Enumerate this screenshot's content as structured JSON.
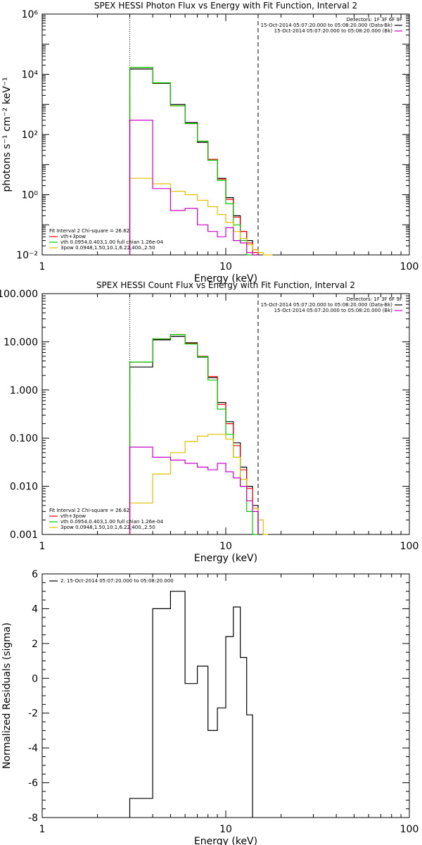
{
  "chart_data": [
    {
      "type": "line",
      "title": "SPEX HESSI Photon Flux vs Energy with Fit Function, Interval 2",
      "xlabel": "Energy (keV)",
      "ylabel": "photons s⁻¹ cm⁻² keV⁻¹",
      "xscale": "log",
      "yscale": "log",
      "xlim": [
        1,
        100
      ],
      "ylim": [
        0.01,
        1000000
      ],
      "x_ticks": [
        "1",
        "10",
        "100"
      ],
      "y_ticks": [
        {
          "value": 0.01,
          "label": "10⁻²"
        },
        {
          "value": 1,
          "label": "10⁰"
        },
        {
          "value": 100,
          "label": "10²"
        },
        {
          "value": 10000,
          "label": "10⁴"
        },
        {
          "value": 1000000,
          "label": "10⁶"
        }
      ],
      "vlines": [
        {
          "x": 3,
          "style": "dotted"
        },
        {
          "x": 15,
          "style": "dashed"
        }
      ],
      "legend_right": {
        "header": "Detectors: 1F 3F 6F 9F",
        "entries": [
          {
            "label": "15-Oct-2014 05:07:20.000 to 05:08:20.000 (Data-Bk)",
            "color": "#000000"
          },
          {
            "label": "15-Oct-2014 05:07:20.000 to 05:08:20.000 (Bk)",
            "color": "#cc00cc"
          }
        ]
      },
      "legend_left": {
        "header": "Fit Interval  2   Chi-square = 26.62",
        "entries": [
          {
            "label": "vth+3pow",
            "color": "#ff0000"
          },
          {
            "label": "vth 0.0954,0.403,1.00  full chian 1.26e-04",
            "color": "#00cc00"
          },
          {
            "label": "3pow 0.0948,1.50,10.1,6.22,400.,2.50",
            "color": "#e0c000"
          }
        ]
      },
      "bin_edges": [
        3,
        4,
        5,
        6,
        7,
        8,
        9,
        10,
        11,
        12,
        13,
        14,
        15,
        16,
        17,
        18
      ],
      "series": [
        {
          "name": "Data-Bk",
          "color": "#000000",
          "values": [
            15000,
            5000,
            1000,
            250,
            55,
            14,
            3.5,
            0.8,
            0.2,
            0.06,
            0.03,
            0.015,
            null,
            null,
            null
          ]
        },
        {
          "name": "vth+3pow",
          "color": "#ff0000",
          "values": [
            17000,
            5200,
            900,
            230,
            60,
            15,
            3.3,
            0.7,
            0.18,
            0.06,
            0.025,
            0.012,
            null,
            null,
            null
          ]
        },
        {
          "name": "vth",
          "color": "#00cc00",
          "values": [
            17000,
            5200,
            900,
            230,
            60,
            14,
            3.0,
            0.5,
            0.1,
            0.03,
            0.01,
            0.005,
            null,
            null,
            null
          ]
        },
        {
          "name": "3pow",
          "color": "#e0c000",
          "values": [
            3.5,
            2.3,
            1.3,
            1.0,
            0.65,
            0.4,
            0.22,
            0.12,
            0.06,
            0.035,
            0.022,
            0.015,
            0.012,
            0.01,
            0.009
          ]
        },
        {
          "name": "Bk",
          "color": "#cc00cc",
          "values": [
            300,
            1.6,
            0.3,
            0.35,
            0.1,
            0.06,
            0.04,
            0.08,
            0.03,
            0.025,
            0.012,
            0.01,
            null,
            null,
            null
          ]
        }
      ]
    },
    {
      "type": "line",
      "title": "SPEX HESSI Count Flux vs Energy with Fit Function, Interval 2",
      "xlabel": "Energy (keV)",
      "ylabel": "",
      "xscale": "log",
      "yscale": "log",
      "xlim": [
        1,
        100
      ],
      "ylim": [
        0.001,
        100
      ],
      "x_ticks": [
        "1",
        "10",
        "100"
      ],
      "y_ticks": [
        {
          "value": 0.001,
          "label": "0.001"
        },
        {
          "value": 0.01,
          "label": "0.010"
        },
        {
          "value": 0.1,
          "label": "0.100"
        },
        {
          "value": 1,
          "label": "1.000"
        },
        {
          "value": 10,
          "label": "10.000"
        },
        {
          "value": 100,
          "label": "100.000"
        }
      ],
      "vlines": [
        {
          "x": 3,
          "style": "dotted"
        },
        {
          "x": 15,
          "style": "dashed"
        }
      ],
      "legend_right": {
        "header": "Detectors: 1F 3F 6F 9F",
        "entries": [
          {
            "label": "15-Oct-2014 05:07:20.000 to 05:08:20.000 (Data-Bk)",
            "color": "#000000"
          },
          {
            "label": "15-Oct-2014 05:07:20.000 to 05:08:20.000 (Bk)",
            "color": "#cc00cc"
          }
        ]
      },
      "legend_left": {
        "header": "Fit Interval  2   Chi-square = 26.62",
        "entries": [
          {
            "label": "vth+3pow",
            "color": "#ff0000"
          },
          {
            "label": "vth 0.0954,0.403,1.00  full chian 1.26e-04",
            "color": "#00cc00"
          },
          {
            "label": "3pow 0.0948,1.50,10.1,6.22,400.,2.50",
            "color": "#e0c000"
          }
        ]
      },
      "bin_edges": [
        3,
        4,
        5,
        6,
        7,
        8,
        9,
        10,
        11,
        12,
        13,
        14,
        15,
        16,
        17,
        18
      ],
      "series": [
        {
          "name": "Data-Bk",
          "color": "#000000",
          "values": [
            3.0,
            11.0,
            13.0,
            9.5,
            4.8,
            1.8,
            0.55,
            0.22,
            0.08,
            0.025,
            0.01,
            0.004,
            null,
            null,
            null
          ]
        },
        {
          "name": "vth+3pow",
          "color": "#ff0000",
          "values": [
            3.8,
            11.5,
            14.0,
            9.2,
            5.0,
            1.9,
            0.5,
            0.2,
            0.07,
            0.022,
            0.009,
            0.0035,
            null,
            null,
            null
          ]
        },
        {
          "name": "vth",
          "color": "#00cc00",
          "values": [
            3.8,
            11.5,
            14.0,
            9.0,
            4.9,
            1.6,
            0.4,
            0.12,
            0.04,
            0.01,
            0.003,
            0.001,
            null,
            null,
            null
          ]
        },
        {
          "name": "3pow",
          "color": "#e0c000",
          "values": [
            0.0045,
            0.018,
            0.05,
            0.085,
            0.11,
            0.12,
            0.12,
            0.095,
            0.04,
            0.014,
            0.005,
            0.0035,
            0.002,
            0.001,
            null
          ]
        },
        {
          "name": "Bk",
          "color": "#cc00cc",
          "values": [
            0.065,
            0.04,
            0.035,
            0.03,
            0.025,
            0.022,
            0.03,
            0.02,
            0.015,
            0.01,
            0.005,
            0.003,
            null,
            null,
            null
          ]
        }
      ]
    },
    {
      "type": "line",
      "title": "",
      "xlabel": "Energy (keV)",
      "ylabel": "Normalized Residuals (sigma)",
      "xscale": "log",
      "yscale": "linear",
      "xlim": [
        1,
        100
      ],
      "ylim": [
        -8,
        6
      ],
      "x_ticks": [
        "1",
        "10",
        "100"
      ],
      "y_ticks": [
        {
          "value": -8,
          "label": "-8"
        },
        {
          "value": -6,
          "label": "-6"
        },
        {
          "value": -4,
          "label": "-4"
        },
        {
          "value": -2,
          "label": "-2"
        },
        {
          "value": 0,
          "label": "0"
        },
        {
          "value": 2,
          "label": "2"
        },
        {
          "value": 4,
          "label": "4"
        },
        {
          "value": 6,
          "label": "6"
        }
      ],
      "legend_left": {
        "header": "",
        "entries": [
          {
            "label": "2. 15-Oct-2014 05:07:20.000 to 05:08:20.000",
            "color": "#000000"
          }
        ]
      },
      "bin_edges": [
        3,
        4,
        5,
        6,
        7,
        8,
        9,
        10,
        11,
        12,
        13,
        14,
        15
      ],
      "series": [
        {
          "name": "residuals",
          "color": "#000000",
          "values": [
            -6.9,
            4.0,
            5.0,
            -0.3,
            0.7,
            -3.0,
            -1.7,
            2.4,
            4.1,
            1.2,
            -2.1,
            null
          ]
        }
      ]
    }
  ]
}
